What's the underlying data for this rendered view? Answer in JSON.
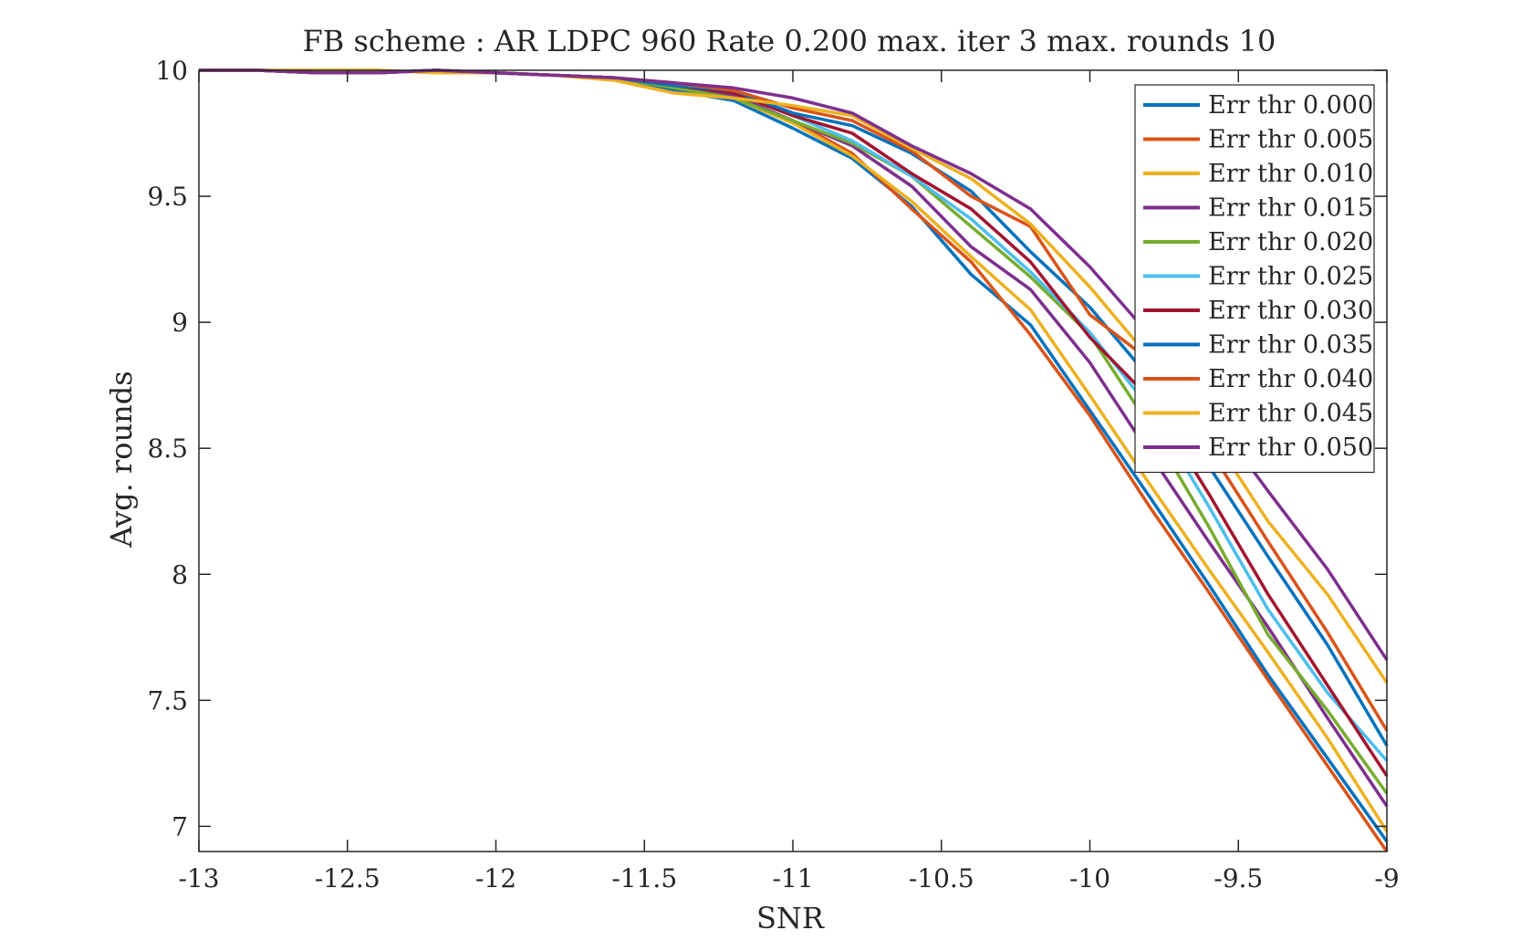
{
  "chart_data": {
    "type": "line",
    "title": "FB scheme : AR LDPC 960 Rate 0.200 max. iter 3 max. rounds 10",
    "xlabel": "SNR",
    "ylabel": "Avg. rounds",
    "xlim": [
      -13,
      -9
    ],
    "ylim": [
      6.9,
      10
    ],
    "xticks": [
      -13,
      -12.5,
      -12,
      -11.5,
      -11,
      -10.5,
      -10,
      -9.5,
      -9
    ],
    "xtick_labels": [
      "-13",
      "-12.5",
      "-12",
      "-11.5",
      "-11",
      "-10.5",
      "-10",
      "-9.5",
      "-9"
    ],
    "yticks": [
      7,
      7.5,
      8,
      8.5,
      9,
      9.5,
      10
    ],
    "ytick_labels": [
      "7",
      "7.5",
      "8",
      "8.5",
      "9",
      "9.5",
      "10"
    ],
    "grid": false,
    "legend_position": "top-right",
    "x": [
      -13,
      -12.8,
      -12.6,
      -12.4,
      -12.2,
      -12,
      -11.8,
      -11.6,
      -11.4,
      -11.2,
      -11,
      -10.8,
      -10.6,
      -10.4,
      -10.2,
      -10,
      -9.8,
      -9.6,
      -9.4,
      -9.2,
      -9
    ],
    "series": [
      {
        "name": "Err thr 0.000",
        "color": "#0072BD",
        "values": [
          10,
          10,
          9.99,
          9.99,
          10,
          9.99,
          9.98,
          9.97,
          9.92,
          9.88,
          9.77,
          9.65,
          9.46,
          9.19,
          8.99,
          8.65,
          8.31,
          7.96,
          7.6,
          7.27,
          6.94
        ]
      },
      {
        "name": "Err thr 0.005",
        "color": "#D95319",
        "values": [
          10,
          10,
          9.99,
          9.99,
          10,
          9.99,
          9.98,
          9.97,
          9.93,
          9.9,
          9.8,
          9.67,
          9.45,
          9.24,
          8.95,
          8.63,
          8.27,
          7.93,
          7.58,
          7.24,
          6.9
        ]
      },
      {
        "name": "Err thr 0.010",
        "color": "#EDB120",
        "values": [
          10,
          10,
          10,
          10,
          9.99,
          9.99,
          9.98,
          9.96,
          9.91,
          9.89,
          9.79,
          9.66,
          9.48,
          9.26,
          9.05,
          8.71,
          8.36,
          8.02,
          7.69,
          7.35,
          6.98
        ]
      },
      {
        "name": "Err thr 0.015",
        "color": "#7E2F8E",
        "values": [
          10,
          10,
          9.99,
          9.99,
          10,
          9.99,
          9.98,
          9.97,
          9.94,
          9.9,
          9.8,
          9.7,
          9.54,
          9.3,
          9.13,
          8.84,
          8.48,
          8.13,
          7.79,
          7.43,
          7.08
        ]
      },
      {
        "name": "Err thr 0.020",
        "color": "#77AC30",
        "values": [
          10,
          10,
          9.99,
          9.99,
          10,
          9.99,
          9.98,
          9.97,
          9.93,
          9.89,
          9.8,
          9.71,
          9.58,
          9.38,
          9.18,
          8.95,
          8.59,
          8.19,
          7.76,
          7.46,
          7.13
        ]
      },
      {
        "name": "Err thr 0.025",
        "color": "#4DBEEE",
        "values": [
          10,
          10,
          9.99,
          9.99,
          10,
          9.99,
          9.98,
          9.97,
          9.94,
          9.91,
          9.82,
          9.72,
          9.58,
          9.41,
          9.2,
          8.96,
          8.66,
          8.27,
          7.86,
          7.53,
          7.26
        ]
      },
      {
        "name": "Err thr 0.030",
        "color": "#A2142F",
        "values": [
          10,
          10,
          9.99,
          9.99,
          10,
          9.99,
          9.98,
          9.97,
          9.94,
          9.91,
          9.82,
          9.75,
          9.59,
          9.45,
          9.24,
          8.94,
          8.7,
          8.32,
          7.92,
          7.56,
          7.2
        ]
      },
      {
        "name": "Err thr 0.035",
        "color": "#0072BD",
        "values": [
          10,
          10,
          9.99,
          9.99,
          10,
          9.99,
          9.98,
          9.97,
          9.94,
          9.92,
          9.83,
          9.78,
          9.67,
          9.52,
          9.28,
          9.06,
          8.78,
          8.43,
          8.07,
          7.72,
          7.32
        ]
      },
      {
        "name": "Err thr 0.040",
        "color": "#D95319",
        "values": [
          10,
          10,
          9.99,
          9.99,
          10,
          9.99,
          9.98,
          9.97,
          9.95,
          9.92,
          9.85,
          9.8,
          9.68,
          9.5,
          9.38,
          9.03,
          8.85,
          8.5,
          8.13,
          7.77,
          7.38
        ]
      },
      {
        "name": "Err thr 0.045",
        "color": "#EDB120",
        "values": [
          10,
          10,
          10,
          10,
          9.99,
          9.99,
          9.98,
          9.96,
          9.91,
          9.89,
          9.86,
          9.82,
          9.69,
          9.57,
          9.39,
          9.14,
          8.86,
          8.57,
          8.21,
          7.92,
          7.57
        ]
      },
      {
        "name": "Err thr 0.050",
        "color": "#7E2F8E",
        "values": [
          10,
          10,
          9.99,
          9.99,
          10,
          9.99,
          9.98,
          9.97,
          9.95,
          9.93,
          9.89,
          9.83,
          9.7,
          9.59,
          9.45,
          9.22,
          8.95,
          8.65,
          8.33,
          8.02,
          7.66
        ]
      }
    ]
  }
}
